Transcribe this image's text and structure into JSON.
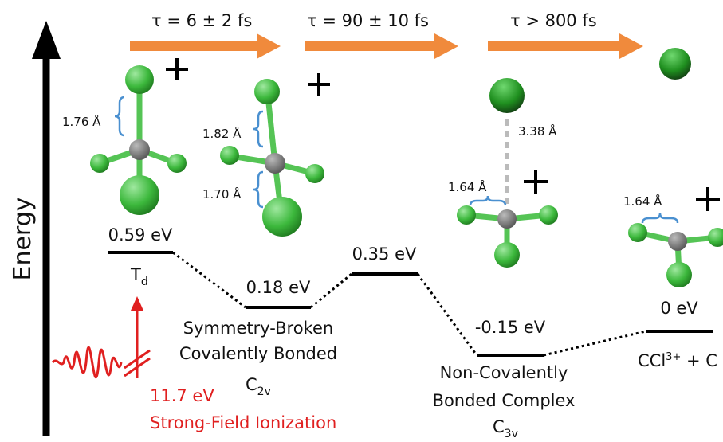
{
  "arrows": [
    {
      "label": "τ = 6 ± 2 fs"
    },
    {
      "label": "τ = 90 ± 10 fs"
    },
    {
      "label": "τ > 800 fs"
    }
  ],
  "axis_label": "Energy",
  "bond_lengths": [
    "1.76 Å",
    "1.82 Å",
    "1.70 Å",
    "3.38 Å",
    "1.64 Å",
    "1.64 Å"
  ],
  "states": [
    {
      "energy": "0.59 eV",
      "symmetry": {
        "base": "T",
        "sub": "d"
      }
    },
    {
      "energy": "0.18 eV",
      "lines": [
        "Symmetry-Broken",
        "Covalently Bonded"
      ],
      "symmetry": {
        "base": "C",
        "sub": "2v"
      }
    },
    {
      "energy": "0.35 eV"
    },
    {
      "energy": "-0.15 eV",
      "lines": [
        "Non-Covalently",
        "Bonded Complex"
      ],
      "symmetry": {
        "base": "C",
        "sub": "3v"
      }
    },
    {
      "energy": "0 eV",
      "product": {
        "base": "CCl",
        "sub": "3",
        "sup": "+",
        "rest": " + C"
      }
    }
  ],
  "ionization": {
    "energy": "11.7 eV",
    "label": "Strong-Field Ionization"
  }
}
